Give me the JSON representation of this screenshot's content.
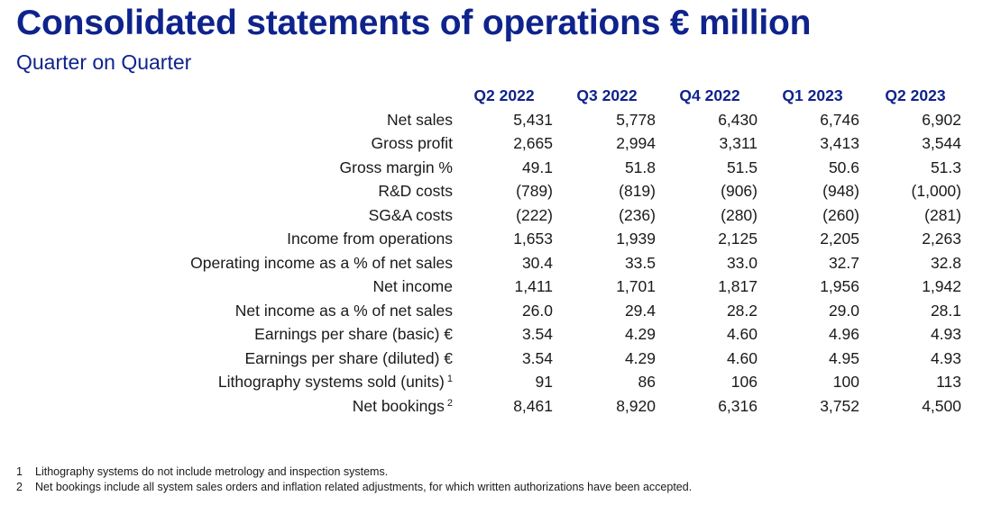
{
  "header": {
    "title": "Consolidated statements of operations € million",
    "subtitle": "Quarter on Quarter"
  },
  "table": {
    "columns": [
      "Q2 2022",
      "Q3 2022",
      "Q4 2022",
      "Q1 2023",
      "Q2 2023"
    ],
    "rows": [
      {
        "label": "Net sales",
        "sup": "",
        "values": [
          "5,431",
          "5,778",
          "6,430",
          "6,746",
          "6,902"
        ]
      },
      {
        "label": "Gross profit",
        "sup": "",
        "values": [
          "2,665",
          "2,994",
          "3,311",
          "3,413",
          "3,544"
        ]
      },
      {
        "label": "Gross margin %",
        "sup": "",
        "values": [
          "49.1",
          "51.8",
          "51.5",
          "50.6",
          "51.3"
        ]
      },
      {
        "label": "R&D costs",
        "sup": "",
        "values": [
          "(789)",
          "(819)",
          "(906)",
          "(948)",
          "(1,000)"
        ]
      },
      {
        "label": "SG&A costs",
        "sup": "",
        "values": [
          "(222)",
          "(236)",
          "(280)",
          "(260)",
          "(281)"
        ]
      },
      {
        "label": "Income from operations",
        "sup": "",
        "values": [
          "1,653",
          "1,939",
          "2,125",
          "2,205",
          "2,263"
        ]
      },
      {
        "label": "Operating income as a % of net sales",
        "sup": "",
        "values": [
          "30.4",
          "33.5",
          "33.0",
          "32.7",
          "32.8"
        ]
      },
      {
        "label": "Net income",
        "sup": "",
        "values": [
          "1,411",
          "1,701",
          "1,817",
          "1,956",
          "1,942"
        ]
      },
      {
        "label": "Net income as a % of net sales",
        "sup": "",
        "values": [
          "26.0",
          "29.4",
          "28.2",
          "29.0",
          "28.1"
        ]
      },
      {
        "label": "Earnings per share (basic) €",
        "sup": "",
        "values": [
          "3.54",
          "4.29",
          "4.60",
          "4.96",
          "4.93"
        ]
      },
      {
        "label": "Earnings per share (diluted) €",
        "sup": "",
        "values": [
          "3.54",
          "4.29",
          "4.60",
          "4.95",
          "4.93"
        ]
      },
      {
        "label": "Lithography systems sold (units)",
        "sup": "1",
        "values": [
          "91",
          "86",
          "106",
          "100",
          "113"
        ]
      },
      {
        "label": "Net bookings",
        "sup": "2",
        "values": [
          "8,461",
          "8,920",
          "6,316",
          "3,752",
          "4,500"
        ]
      }
    ]
  },
  "footnotes": [
    {
      "num": "1",
      "text": "Lithography systems do not include metrology and inspection systems."
    },
    {
      "num": "2",
      "text": "Net bookings include all system sales orders and inflation related adjustments, for which written authorizations have been accepted."
    }
  ],
  "colors": {
    "brand_blue": "#0f238c",
    "text": "#1a1a1a"
  }
}
